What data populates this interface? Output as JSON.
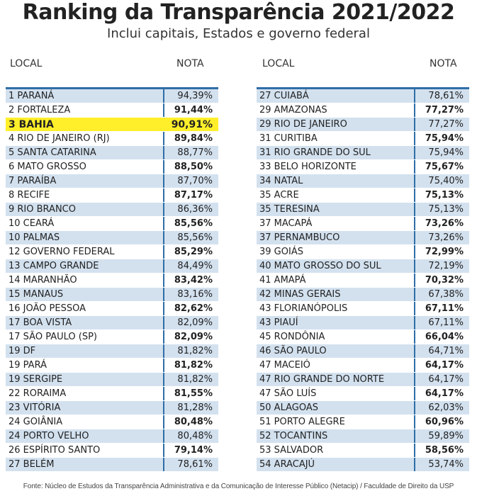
{
  "header": {
    "title": "Ranking da Transparência 2021/2022",
    "subtitle": "Inclui capitais, Estados e governo federal"
  },
  "columns": {
    "local": "LOCAL",
    "nota": "NOTA"
  },
  "left_table": [
    {
      "local": "1 PARANÁ",
      "nota": "94,39%",
      "bold": false
    },
    {
      "local": "2 FORTALEZA",
      "nota": "91,44%",
      "bold": true
    },
    {
      "local": "3 BAHIA",
      "nota": "90,91%",
      "bold": true,
      "highlight": true
    },
    {
      "local": "4 RIO DE JANEIRO (RJ)",
      "nota": "89,84%",
      "bold": true
    },
    {
      "local": "5 SANTA CATARINA",
      "nota": "88,77%",
      "bold": false
    },
    {
      "local": "6 MATO GROSSO",
      "nota": "88,50%",
      "bold": true
    },
    {
      "local": "7 PARAÍBA",
      "nota": "87,70%",
      "bold": false
    },
    {
      "local": "8 RECIFE",
      "nota": "87,17%",
      "bold": true
    },
    {
      "local": "9 RIO BRANCO",
      "nota": "86,36%",
      "bold": false
    },
    {
      "local": "10 CEARÁ",
      "nota": "85,56%",
      "bold": true
    },
    {
      "local": "10 PALMAS",
      "nota": "85,56%",
      "bold": false
    },
    {
      "local": "12 GOVERNO FEDERAL",
      "nota": "85,29%",
      "bold": true
    },
    {
      "local": "13 CAMPO GRANDE",
      "nota": "84,49%",
      "bold": false
    },
    {
      "local": "14 MARANHÃO",
      "nota": "83,42%",
      "bold": true
    },
    {
      "local": "15 MANAUS",
      "nota": "83,16%",
      "bold": false
    },
    {
      "local": "16 JOÃO PESSOA",
      "nota": "82,62%",
      "bold": true
    },
    {
      "local": "17 BOA VISTA",
      "nota": "82,09%",
      "bold": false
    },
    {
      "local": "17 SÃO PAULO (SP)",
      "nota": "82,09%",
      "bold": true
    },
    {
      "local": "19 DF",
      "nota": "81,82%",
      "bold": false
    },
    {
      "local": "19 PARÁ",
      "nota": "81,82%",
      "bold": true
    },
    {
      "local": "19 SERGIPE",
      "nota": "81,82%",
      "bold": false
    },
    {
      "local": "22 RORAIMA",
      "nota": "81,55%",
      "bold": true
    },
    {
      "local": "23 VITÓRIA",
      "nota": "81,28%",
      "bold": false
    },
    {
      "local": "24 GOIÂNIA",
      "nota": "80,48%",
      "bold": true
    },
    {
      "local": "24 PORTO VELHO",
      "nota": "80,48%",
      "bold": false
    },
    {
      "local": "26 ESPÍRITO SANTO",
      "nota": "79,14%",
      "bold": true
    },
    {
      "local": "27 BELÉM",
      "nota": "78,61%",
      "bold": false
    }
  ],
  "right_table": [
    {
      "local": "27 CUIABÁ",
      "nota": "78,61%",
      "bold": false
    },
    {
      "local": "29 AMAZONAS",
      "nota": "77,27%",
      "bold": true
    },
    {
      "local": "29 RIO DE JANEIRO",
      "nota": "77,27%",
      "bold": false
    },
    {
      "local": "31 CURITIBA",
      "nota": "75,94%",
      "bold": true
    },
    {
      "local": "31 RIO GRANDE DO SUL",
      "nota": "75,94%",
      "bold": false
    },
    {
      "local": "33 BELO HORIZONTE",
      "nota": "75,67%",
      "bold": true
    },
    {
      "local": "34 NATAL",
      "nota": "75,40%",
      "bold": false
    },
    {
      "local": "35 ACRE",
      "nota": "75,13%",
      "bold": true
    },
    {
      "local": "35 TERESINA",
      "nota": "75,13%",
      "bold": false
    },
    {
      "local": "37 MACAPÁ",
      "nota": "73,26%",
      "bold": true
    },
    {
      "local": "37 PERNAMBUCO",
      "nota": "73,26%",
      "bold": false
    },
    {
      "local": "39 GOIÁS",
      "nota": "72,99%",
      "bold": true
    },
    {
      "local": "40 MATO GROSSO DO SUL",
      "nota": "72,19%",
      "bold": false
    },
    {
      "local": "41 AMAPÁ",
      "nota": "70,32%",
      "bold": true
    },
    {
      "local": "42 MINAS GERAIS",
      "nota": "67,38%",
      "bold": false
    },
    {
      "local": "43 FLORIANÓPOLIS",
      "nota": "67,11%",
      "bold": true
    },
    {
      "local": "43 PIAUÍ",
      "nota": "67,11%",
      "bold": false
    },
    {
      "local": "45 RONDÔNIA",
      "nota": "66,04%",
      "bold": true
    },
    {
      "local": "46 SÃO PAULO",
      "nota": "64,71%",
      "bold": false
    },
    {
      "local": "47 MACEIÓ",
      "nota": "64,17%",
      "bold": true
    },
    {
      "local": "47 RIO GRANDE DO NORTE",
      "nota": "64,17%",
      "bold": false
    },
    {
      "local": "47 SÃO LUÍS",
      "nota": "64,17%",
      "bold": true
    },
    {
      "local": "50 ALAGOAS",
      "nota": "62,03%",
      "bold": false
    },
    {
      "local": "51 PORTO ALEGRE",
      "nota": "60,96%",
      "bold": true
    },
    {
      "local": "52 TOCANTINS",
      "nota": "59,89%",
      "bold": false
    },
    {
      "local": "53 SALVADOR",
      "nota": "58,56%",
      "bold": true
    },
    {
      "local": "54 ARACAJÚ",
      "nota": "53,74%",
      "bold": false
    }
  ],
  "footer": "Fonte: Núcleo de Estudos da Transparência Administrativa e da Comunicação de Interesse Público (Netacip) / Faculdade de Direito da USP",
  "colors": {
    "accent_blue": "#2f6ea6",
    "stripe_blue": "#d3e1ef",
    "highlight_yellow": "#ffef2a"
  }
}
